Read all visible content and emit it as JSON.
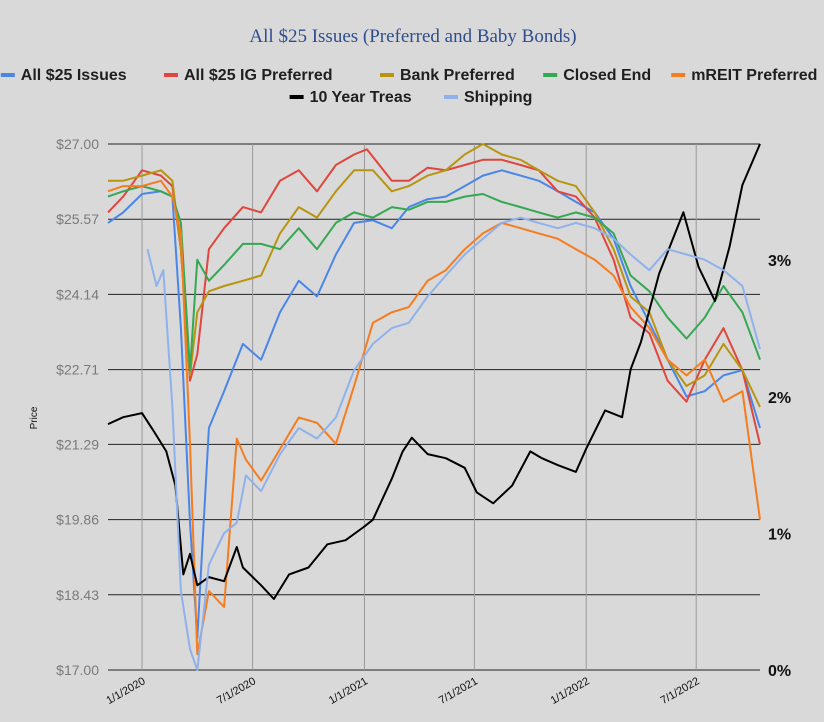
{
  "chart_data": {
    "type": "line",
    "title": "All $25 Issues (Preferred and Baby Bonds)",
    "ylabel": "Price",
    "y_ticks": [
      "$27.00",
      "$25.57",
      "$24.14",
      "$22.71",
      "$21.29",
      "$19.86",
      "$18.43",
      "$17.00"
    ],
    "y_tick_values": [
      27.0,
      25.57,
      24.14,
      22.71,
      21.29,
      19.86,
      18.43,
      17.0
    ],
    "ylim": [
      17.0,
      27.0
    ],
    "y2_ticks": [
      "3%",
      "2%",
      "1%",
      "0%"
    ],
    "y2_tick_values": [
      3,
      2,
      1,
      0
    ],
    "y2lim": [
      0,
      3.85
    ],
    "x_ticks": [
      "1/1/2020",
      "7/1/2020",
      "1/1/2021",
      "7/1/2021",
      "1/1/2022",
      "7/1/2022"
    ],
    "x_tick_values": [
      "2020-01-01",
      "2020-07-01",
      "2021-01-01",
      "2021-07-01",
      "2022-01-01",
      "2022-07-01"
    ],
    "xlim": [
      "2019-11-06",
      "2022-10-14"
    ],
    "grid": "horizontal",
    "legend_position": "top",
    "series": [
      {
        "name": "All $25 Issues",
        "color": "#4a86e8",
        "axis": "left",
        "x": [
          "2019-11-06",
          "2019-12-01",
          "2020-01-01",
          "2020-02-01",
          "2020-02-20",
          "2020-03-05",
          "2020-03-20",
          "2020-04-01",
          "2020-04-20",
          "2020-05-15",
          "2020-06-15",
          "2020-07-15",
          "2020-08-15",
          "2020-09-15",
          "2020-10-15",
          "2020-11-15",
          "2020-12-15",
          "2021-01-15",
          "2021-02-15",
          "2021-03-15",
          "2021-04-15",
          "2021-05-15",
          "2021-06-15",
          "2021-07-15",
          "2021-08-15",
          "2021-09-15",
          "2021-10-15",
          "2021-11-15",
          "2021-12-15",
          "2022-01-15",
          "2022-02-15",
          "2022-03-15",
          "2022-04-15",
          "2022-05-15",
          "2022-06-15",
          "2022-07-15",
          "2022-08-15",
          "2022-09-15",
          "2022-10-14"
        ],
        "values": [
          25.5,
          25.7,
          26.05,
          26.1,
          26.0,
          23.5,
          19.8,
          17.6,
          21.6,
          22.3,
          23.2,
          22.9,
          23.8,
          24.4,
          24.1,
          24.9,
          25.5,
          25.55,
          25.4,
          25.8,
          25.95,
          26.0,
          26.2,
          26.4,
          26.5,
          26.4,
          26.3,
          26.1,
          25.9,
          25.7,
          25.2,
          24.3,
          23.6,
          22.9,
          22.2,
          22.3,
          22.6,
          22.7,
          21.6
        ]
      },
      {
        "name": "All $25 IG Preferred",
        "color": "#e0463d",
        "axis": "left",
        "x": [
          "2019-11-06",
          "2019-12-01",
          "2020-01-01",
          "2020-02-01",
          "2020-02-20",
          "2020-03-05",
          "2020-03-20",
          "2020-04-01",
          "2020-04-20",
          "2020-05-15",
          "2020-06-15",
          "2020-07-15",
          "2020-08-15",
          "2020-09-15",
          "2020-10-15",
          "2020-11-15",
          "2020-12-15",
          "2021-01-05",
          "2021-02-15",
          "2021-03-15",
          "2021-04-15",
          "2021-05-15",
          "2021-06-15",
          "2021-07-15",
          "2021-08-15",
          "2021-09-15",
          "2021-10-15",
          "2021-11-15",
          "2021-12-15",
          "2022-01-15",
          "2022-02-15",
          "2022-03-15",
          "2022-04-15",
          "2022-05-15",
          "2022-06-15",
          "2022-07-15",
          "2022-08-15",
          "2022-09-15",
          "2022-10-14"
        ],
        "values": [
          25.7,
          26.0,
          26.5,
          26.4,
          26.2,
          25.0,
          22.5,
          23.0,
          25.0,
          25.4,
          25.8,
          25.7,
          26.3,
          26.5,
          26.1,
          26.6,
          26.8,
          26.9,
          26.3,
          26.3,
          26.55,
          26.5,
          26.6,
          26.7,
          26.7,
          26.6,
          26.5,
          26.1,
          26.0,
          25.6,
          24.8,
          23.7,
          23.4,
          22.5,
          22.1,
          22.9,
          23.5,
          22.7,
          21.29
        ]
      },
      {
        "name": "Bank Preferred",
        "color": "#b8940f",
        "axis": "left",
        "x": [
          "2019-11-06",
          "2019-12-01",
          "2020-01-01",
          "2020-02-01",
          "2020-02-20",
          "2020-03-05",
          "2020-03-20",
          "2020-04-01",
          "2020-04-20",
          "2020-05-15",
          "2020-06-15",
          "2020-07-15",
          "2020-08-15",
          "2020-09-15",
          "2020-10-15",
          "2020-11-15",
          "2020-12-15",
          "2021-01-15",
          "2021-02-15",
          "2021-03-15",
          "2021-04-15",
          "2021-05-15",
          "2021-06-15",
          "2021-07-15",
          "2021-08-15",
          "2021-09-15",
          "2021-10-15",
          "2021-11-15",
          "2021-12-15",
          "2022-01-15",
          "2022-02-15",
          "2022-03-15",
          "2022-04-15",
          "2022-05-15",
          "2022-06-15",
          "2022-07-15",
          "2022-08-15",
          "2022-09-15",
          "2022-10-14"
        ],
        "values": [
          26.3,
          26.3,
          26.4,
          26.5,
          26.3,
          25.0,
          22.6,
          23.8,
          24.2,
          24.3,
          24.4,
          24.5,
          25.3,
          25.8,
          25.6,
          26.1,
          26.5,
          26.5,
          26.1,
          26.2,
          26.4,
          26.5,
          26.8,
          27.0,
          26.8,
          26.7,
          26.5,
          26.3,
          26.2,
          25.7,
          25.0,
          24.1,
          23.8,
          22.9,
          22.4,
          22.6,
          23.2,
          22.7,
          22.0
        ]
      },
      {
        "name": "Closed End",
        "color": "#34a853",
        "axis": "left",
        "x": [
          "2019-11-06",
          "2019-12-01",
          "2020-01-01",
          "2020-02-01",
          "2020-02-20",
          "2020-03-05",
          "2020-03-20",
          "2020-04-01",
          "2020-04-20",
          "2020-05-15",
          "2020-06-15",
          "2020-07-15",
          "2020-08-15",
          "2020-09-15",
          "2020-10-15",
          "2020-11-15",
          "2020-12-15",
          "2021-01-15",
          "2021-02-15",
          "2021-03-15",
          "2021-04-15",
          "2021-05-15",
          "2021-06-15",
          "2021-07-15",
          "2021-08-15",
          "2021-09-15",
          "2021-10-15",
          "2021-11-15",
          "2021-12-15",
          "2022-01-15",
          "2022-02-15",
          "2022-03-15",
          "2022-04-15",
          "2022-05-15",
          "2022-06-15",
          "2022-07-15",
          "2022-08-15",
          "2022-09-15",
          "2022-10-14"
        ],
        "values": [
          26.0,
          26.1,
          26.2,
          26.1,
          26.0,
          25.5,
          22.7,
          24.8,
          24.4,
          24.7,
          25.1,
          25.1,
          25.0,
          25.4,
          25.0,
          25.5,
          25.7,
          25.6,
          25.8,
          25.75,
          25.9,
          25.9,
          26.0,
          26.05,
          25.9,
          25.8,
          25.7,
          25.6,
          25.7,
          25.6,
          25.3,
          24.5,
          24.2,
          23.7,
          23.3,
          23.7,
          24.3,
          23.8,
          22.9
        ]
      },
      {
        "name": "mREIT Preferred",
        "color": "#f57c1f",
        "axis": "left",
        "x": [
          "2019-11-06",
          "2019-12-01",
          "2020-01-01",
          "2020-02-01",
          "2020-02-20",
          "2020-03-05",
          "2020-03-20",
          "2020-04-01",
          "2020-04-20",
          "2020-05-15",
          "2020-06-05",
          "2020-06-20",
          "2020-07-15",
          "2020-08-15",
          "2020-09-15",
          "2020-10-15",
          "2020-11-15",
          "2020-12-15",
          "2021-01-15",
          "2021-02-15",
          "2021-03-15",
          "2021-04-15",
          "2021-05-15",
          "2021-06-15",
          "2021-07-15",
          "2021-08-15",
          "2021-09-15",
          "2021-10-15",
          "2021-11-15",
          "2021-12-15",
          "2022-01-15",
          "2022-02-15",
          "2022-03-15",
          "2022-04-15",
          "2022-05-15",
          "2022-06-15",
          "2022-07-15",
          "2022-08-15",
          "2022-09-15",
          "2022-10-14"
        ],
        "values": [
          26.1,
          26.2,
          26.2,
          26.3,
          26.0,
          25.3,
          21.3,
          17.3,
          18.5,
          18.2,
          21.4,
          21.0,
          20.6,
          21.2,
          21.8,
          21.7,
          21.3,
          22.4,
          23.6,
          23.8,
          23.9,
          24.4,
          24.6,
          25.0,
          25.3,
          25.5,
          25.4,
          25.3,
          25.2,
          25.0,
          24.8,
          24.5,
          23.9,
          23.5,
          22.9,
          22.6,
          22.9,
          22.1,
          22.3,
          19.86
        ]
      },
      {
        "name": "10 Year Treas",
        "color": "#000000",
        "axis": "right",
        "x": [
          "2019-11-06",
          "2019-12-01",
          "2020-01-01",
          "2020-01-20",
          "2020-02-10",
          "2020-02-25",
          "2020-03-09",
          "2020-03-20",
          "2020-04-01",
          "2020-04-20",
          "2020-05-15",
          "2020-06-05",
          "2020-06-15",
          "2020-07-15",
          "2020-08-05",
          "2020-08-30",
          "2020-10-01",
          "2020-11-01",
          "2020-12-01",
          "2021-01-01",
          "2021-01-15",
          "2021-02-15",
          "2021-03-05",
          "2021-03-20",
          "2021-04-15",
          "2021-05-15",
          "2021-06-15",
          "2021-07-05",
          "2021-08-01",
          "2021-09-01",
          "2021-10-01",
          "2021-10-20",
          "2021-11-15",
          "2021-12-15",
          "2022-01-01",
          "2022-02-01",
          "2022-03-01",
          "2022-03-15",
          "2022-04-01",
          "2022-05-01",
          "2022-06-10",
          "2022-07-05",
          "2022-08-01",
          "2022-08-25",
          "2022-09-15",
          "2022-10-14"
        ],
        "values": [
          1.8,
          1.85,
          1.88,
          1.75,
          1.6,
          1.35,
          0.7,
          0.85,
          0.62,
          0.68,
          0.65,
          0.9,
          0.75,
          0.62,
          0.52,
          0.7,
          0.75,
          0.92,
          0.95,
          1.05,
          1.1,
          1.4,
          1.6,
          1.7,
          1.58,
          1.55,
          1.48,
          1.3,
          1.22,
          1.35,
          1.6,
          1.55,
          1.5,
          1.45,
          1.62,
          1.9,
          1.85,
          2.2,
          2.4,
          2.9,
          3.35,
          2.95,
          2.7,
          3.1,
          3.55,
          3.85
        ]
      },
      {
        "name": "Shipping",
        "color": "#8fb1ec",
        "axis": "left",
        "x": [
          "2020-01-10",
          "2020-01-25",
          "2020-02-05",
          "2020-02-20",
          "2020-03-05",
          "2020-03-20",
          "2020-04-01",
          "2020-04-20",
          "2020-05-15",
          "2020-06-05",
          "2020-06-20",
          "2020-07-15",
          "2020-08-15",
          "2020-09-15",
          "2020-10-15",
          "2020-11-15",
          "2020-12-15",
          "2021-01-15",
          "2021-02-15",
          "2021-03-15",
          "2021-04-15",
          "2021-05-15",
          "2021-06-15",
          "2021-07-15",
          "2021-08-15",
          "2021-09-15",
          "2021-10-15",
          "2021-11-15",
          "2021-12-15",
          "2022-01-15",
          "2022-02-15",
          "2022-03-15",
          "2022-04-15",
          "2022-05-15",
          "2022-06-15",
          "2022-07-15",
          "2022-08-15",
          "2022-09-15",
          "2022-10-14"
        ],
        "values": [
          25.0,
          24.3,
          24.6,
          22.0,
          18.5,
          17.4,
          17.0,
          19.0,
          19.6,
          19.8,
          20.7,
          20.4,
          21.1,
          21.6,
          21.4,
          21.8,
          22.7,
          23.2,
          23.5,
          23.6,
          24.1,
          24.5,
          24.9,
          25.2,
          25.5,
          25.6,
          25.5,
          25.4,
          25.5,
          25.4,
          25.2,
          24.9,
          24.6,
          25.0,
          24.9,
          24.8,
          24.6,
          24.3,
          23.1
        ]
      }
    ]
  }
}
